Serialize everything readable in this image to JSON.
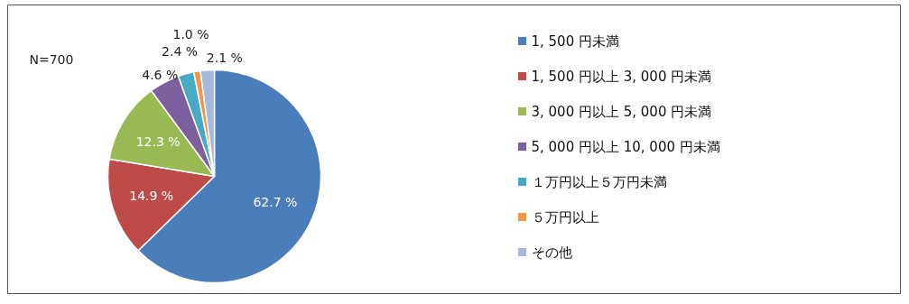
{
  "chart_data": {
    "type": "pie",
    "categories": [
      "1, 500 円未満",
      "1, 500 円以上 3, 000 円未満",
      "3, 000 円以上 5, 000 円未満",
      "5, 000 円以上 10, 000 円未満",
      "１万円以上５万円未満",
      "５万円以上",
      "その他"
    ],
    "values": [
      62.7,
      14.9,
      12.3,
      4.6,
      2.4,
      1.0,
      2.1
    ],
    "colors": [
      "#4a7ebb",
      "#be4b48",
      "#98b954",
      "#7d60a0",
      "#46aac5",
      "#f69546",
      "#a5b8e0"
    ],
    "value_labels": [
      "62.7 %",
      "14.9 %",
      "12.3 %",
      "4.6 %",
      "2.4 %",
      "1.0 %",
      "2.1 %"
    ],
    "legend": "right",
    "annotations": [
      "N=700"
    ]
  }
}
